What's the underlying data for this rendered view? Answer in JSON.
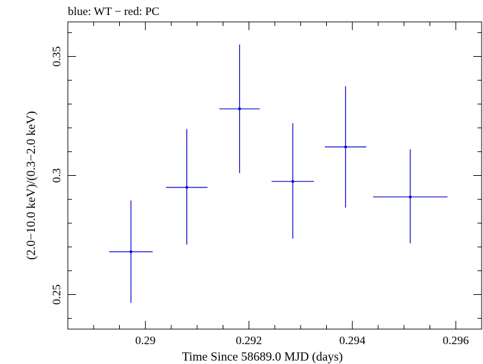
{
  "chart_data": {
    "type": "scatter",
    "title": "blue: WT − red: PC",
    "xlabel": "Time Since 58689.0 MJD (days)",
    "ylabel": "(2.0−10.0 keV)/(0.3−2.0 keV)",
    "xlim": [
      0.2885,
      0.2965
    ],
    "ylim": [
      0.2355,
      0.3645
    ],
    "x_ticks_major": [
      0.29,
      0.292,
      0.294,
      0.296
    ],
    "x_tick_labels": [
      "0.29",
      "0.292",
      "0.294",
      "0.296"
    ],
    "y_ticks_major": [
      0.25,
      0.3,
      0.35
    ],
    "y_tick_labels": [
      "0.25",
      "0.3",
      "0.35"
    ],
    "series": [
      {
        "name": "WT",
        "color": "#0000cc",
        "points": [
          {
            "x": 0.28972,
            "xerr": 0.00042,
            "y": 0.268,
            "ylow": 0.2465,
            "yhigh": 0.2895
          },
          {
            "x": 0.2908,
            "xerr": 0.0004,
            "y": 0.295,
            "ylow": 0.271,
            "yhigh": 0.3195
          },
          {
            "x": 0.29182,
            "xerr": 0.00039,
            "y": 0.328,
            "ylow": 0.301,
            "yhigh": 0.355
          },
          {
            "x": 0.29285,
            "xerr": 0.00041,
            "y": 0.2975,
            "ylow": 0.2735,
            "yhigh": 0.322
          },
          {
            "x": 0.29387,
            "xerr": 0.0004,
            "y": 0.312,
            "ylow": 0.2865,
            "yhigh": 0.3375
          },
          {
            "x": 0.29512,
            "xerr": 0.00072,
            "y": 0.291,
            "ylow": 0.2715,
            "yhigh": 0.311
          }
        ]
      }
    ]
  }
}
